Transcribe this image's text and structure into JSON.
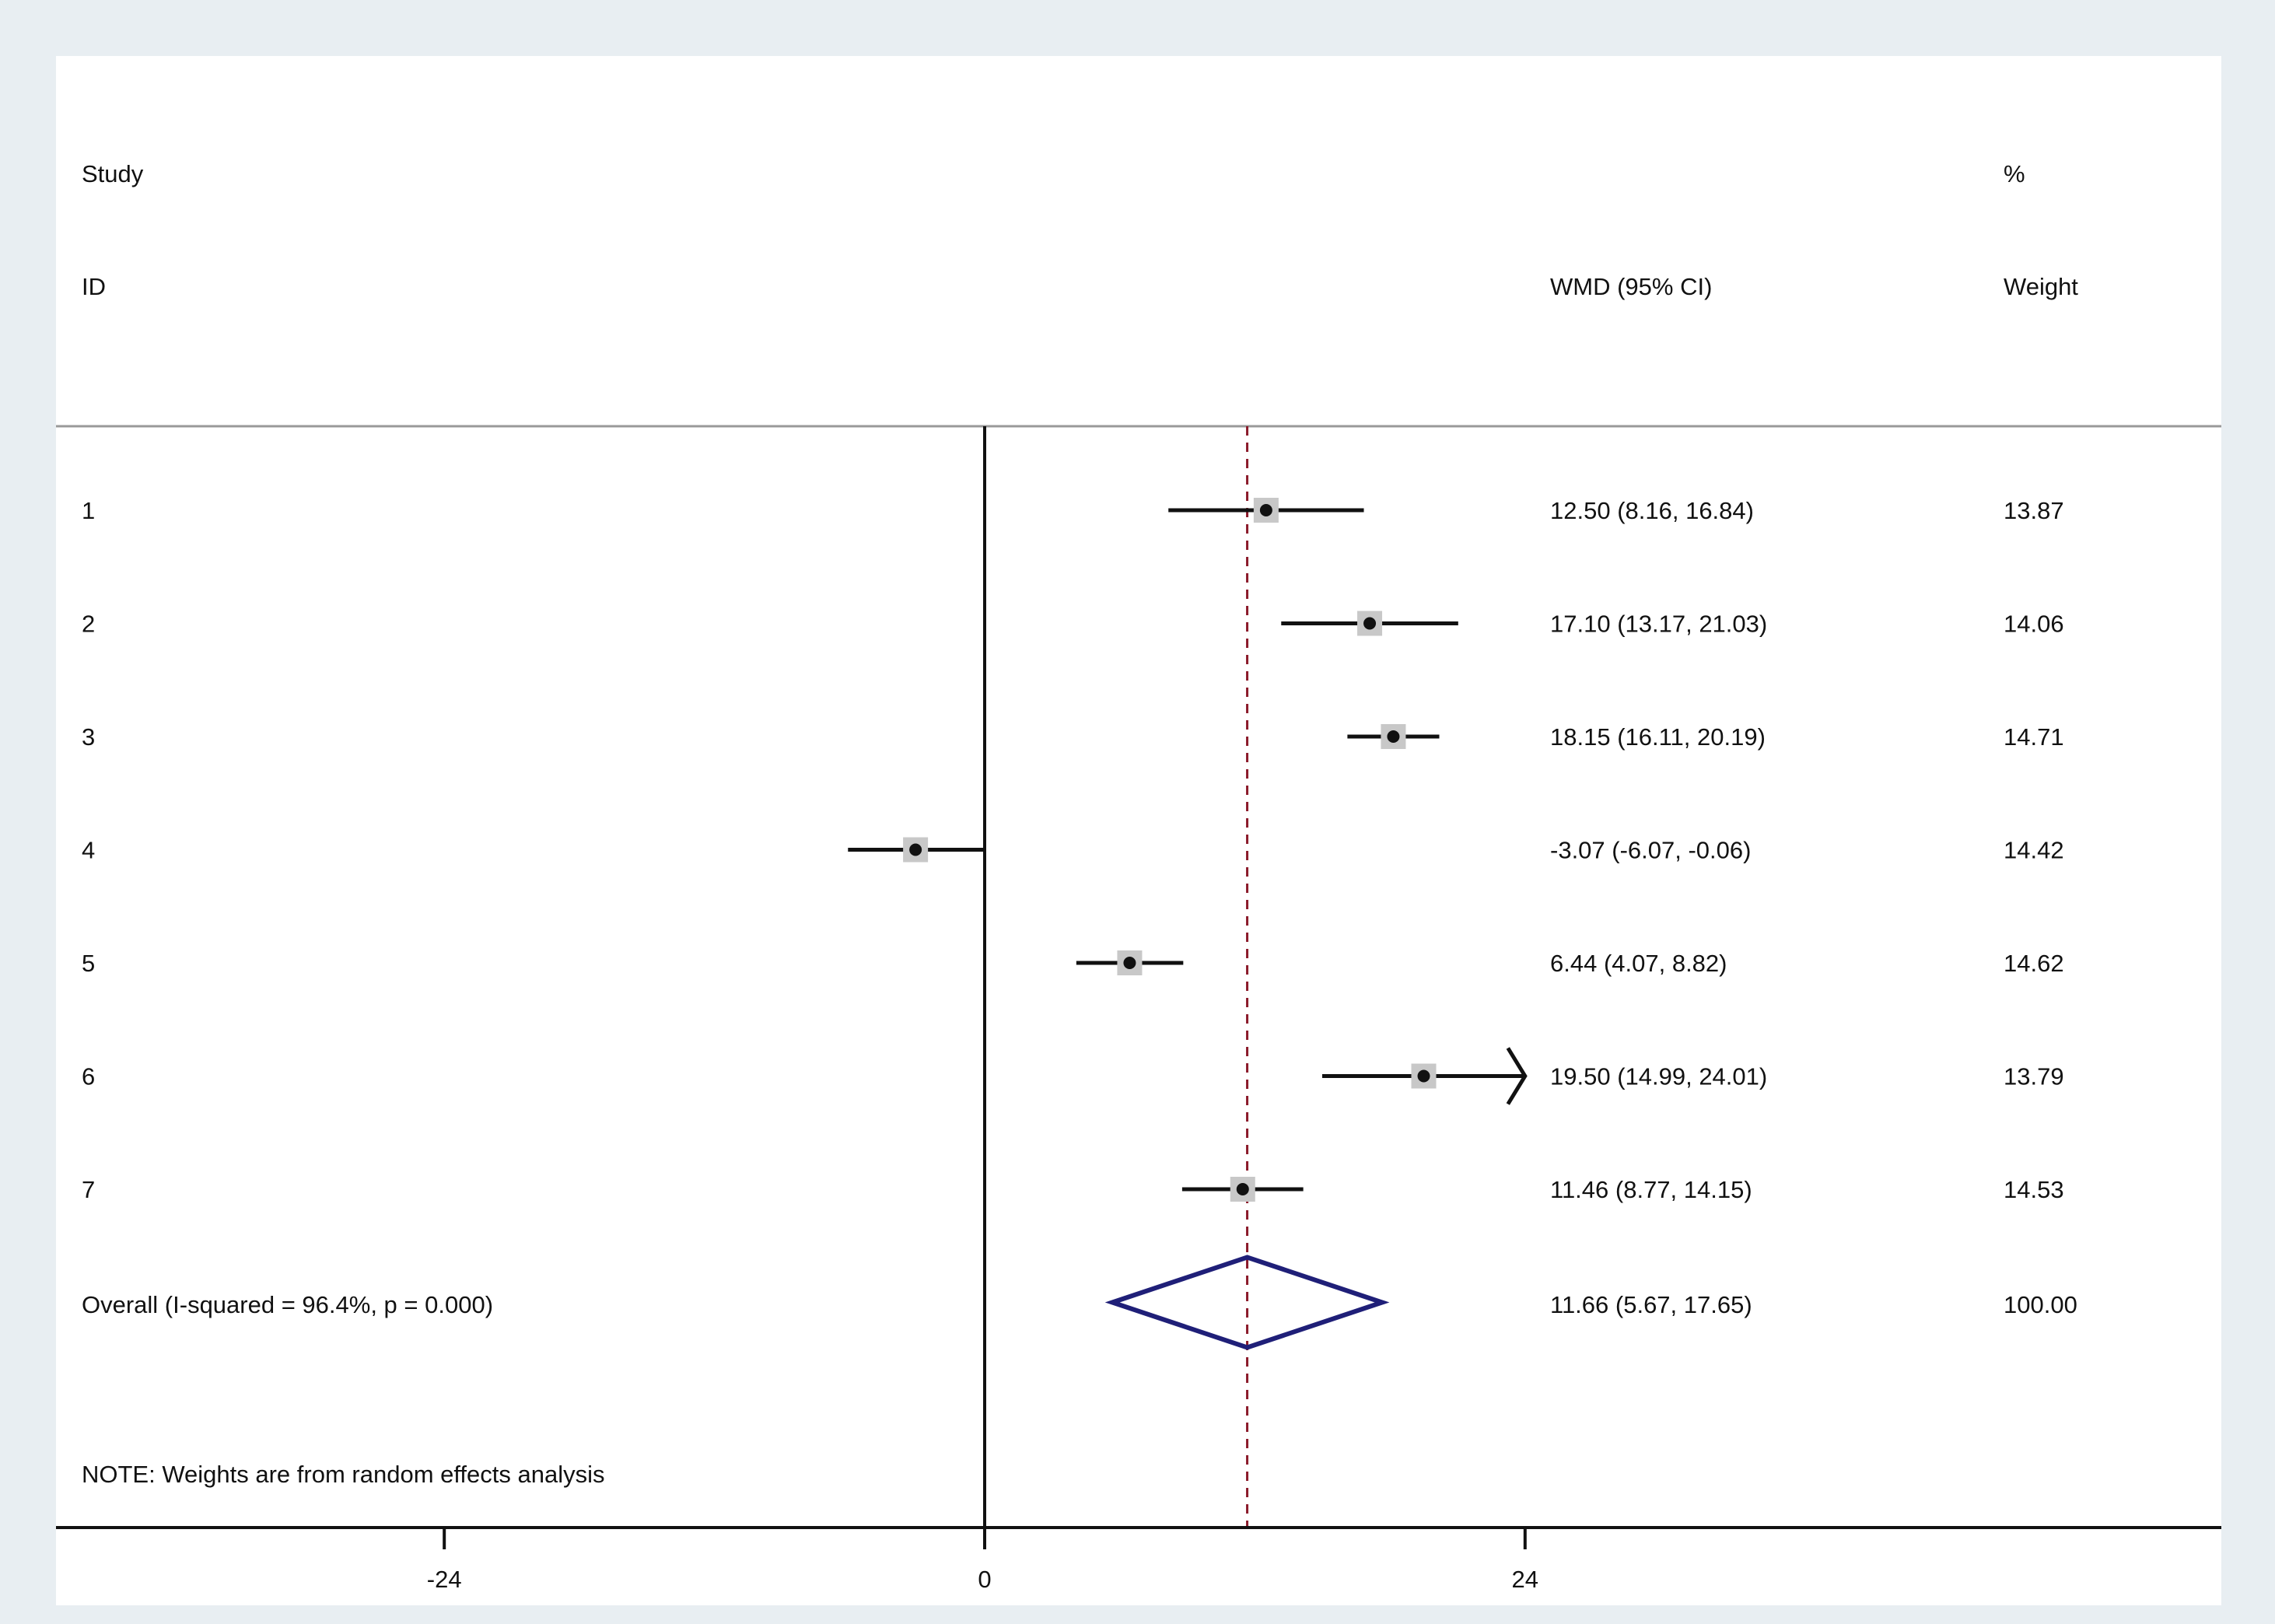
{
  "chart_data": {
    "type": "forest",
    "header": {
      "study_line1": "Study",
      "study_line2": "ID",
      "estimate_col": "WMD (95% CI)",
      "weight_line1": "%",
      "weight_line2": "Weight"
    },
    "studies": [
      {
        "id": "1",
        "est": 12.5,
        "lo": 8.16,
        "hi": 16.84,
        "label": "12.50 (8.16, 16.84)",
        "weight": "13.87"
      },
      {
        "id": "2",
        "est": 17.1,
        "lo": 13.17,
        "hi": 21.03,
        "label": "17.10 (13.17, 21.03)",
        "weight": "14.06"
      },
      {
        "id": "3",
        "est": 18.15,
        "lo": 16.11,
        "hi": 20.19,
        "label": "18.15 (16.11, 20.19)",
        "weight": "14.71"
      },
      {
        "id": "4",
        "est": -3.07,
        "lo": -6.07,
        "hi": -0.06,
        "label": "-3.07 (-6.07, -0.06)",
        "weight": "14.42"
      },
      {
        "id": "5",
        "est": 6.44,
        "lo": 4.07,
        "hi": 8.82,
        "label": "6.44 (4.07, 8.82)",
        "weight": "14.62"
      },
      {
        "id": "6",
        "est": 19.5,
        "lo": 14.99,
        "hi": 24.01,
        "label": "19.50 (14.99, 24.01)",
        "weight": "13.79"
      },
      {
        "id": "7",
        "est": 11.46,
        "lo": 8.77,
        "hi": 14.15,
        "label": "11.46 (8.77, 14.15)",
        "weight": "14.53"
      }
    ],
    "overall": {
      "label": "Overall  (I-squared = 96.4%, p = 0.000)",
      "est": 11.66,
      "lo": 5.67,
      "hi": 17.65,
      "ci_label": "11.66 (5.67, 17.65)",
      "weight": "100.00"
    },
    "note": "NOTE: Weights are from random effects analysis",
    "x_ticks": [
      -24,
      0,
      24
    ],
    "x_tick_labels": [
      "-24",
      "0",
      "24"
    ],
    "x_clip_max": 24,
    "colors": {
      "ci_line": "#111111",
      "diamond": "#1f1f78",
      "overall_line": "#8b1a2a",
      "point": "#111111",
      "weight_box": "#c8c8c8"
    }
  }
}
